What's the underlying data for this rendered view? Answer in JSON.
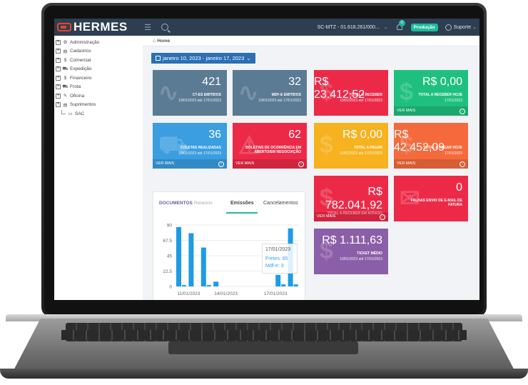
{
  "header": {
    "brand": "HERMES",
    "company": "SC-MTZ - 01.618.261/000...",
    "notifications": "0",
    "environment": "Produção",
    "user": "Suporte"
  },
  "sidebar": {
    "items": [
      {
        "label": "Administração",
        "glyph": "⚙"
      },
      {
        "label": "Cadastros",
        "glyph": "▤"
      },
      {
        "label": "Comercial",
        "glyph": "$"
      },
      {
        "label": "Expedição",
        "glyph": "⛟"
      },
      {
        "label": "Financeiro",
        "glyph": "$"
      },
      {
        "label": "Frota",
        "glyph": "⛟"
      },
      {
        "label": "Oficina",
        "glyph": "✎"
      },
      {
        "label": "Suprimentos",
        "glyph": "▤"
      }
    ],
    "sac": "SAC"
  },
  "breadcrumb": {
    "home": "Home"
  },
  "date_range": "janeiro 10, 2023 - janeiro 17, 2023",
  "tiles": [
    {
      "value": "421",
      "label": "CT-ES EMITIDOS",
      "sub": "10/01/2023 até 17/01/2023",
      "color": "#5b7a93"
    },
    {
      "value": "32",
      "label": "MDF-E EMITIDOS",
      "sub": "10/01/2023 até 17/01/2023",
      "color": "#5b7a93"
    },
    {
      "value": "R$ 23.412,52",
      "label": "TOTAL A RECEBER",
      "sub": "10/01/2023 até 17/01/2023",
      "color": "#ec2a48"
    },
    {
      "value": "R$ 0,00",
      "label": "TOTAL A RECEBER HOJE",
      "sub": "17/01/2023",
      "more": "VER MAIS",
      "color": "#1fc07f"
    },
    {
      "value": "36",
      "label": "COLETAS REALIZADAS",
      "sub": "10/01/2023 até 17/01/2023",
      "more": "VER MAIS",
      "color": "#3a9ee0"
    },
    {
      "value": "62",
      "label": "BOLETINS DE OCORRÊNCIA EM ABERTO/EM NEGOCIAÇÃO",
      "more": "VER MAIS",
      "color": "#ec2a48"
    },
    {
      "value": "R$ 0,00",
      "label": "TOTAL A PAGAR",
      "sub": "10/01/2023 até 17/01/2023",
      "color": "#f6b21f"
    },
    {
      "value": "R$ 42.452,09",
      "label": "TOTAL A PAGAR HOJE",
      "sub": "17/01/2023",
      "more": "VER MAIS",
      "color": "#f46a3c"
    },
    {
      "value_line1": "R$",
      "value_line2": "782.041,92",
      "label": "TOTAL A RECEBER EM ATRASO",
      "more": "VER MAIS",
      "color": "#ec2a48"
    },
    {
      "value": "0",
      "label": "FALHAS ENVIO DE E-MAIL DE FATURA",
      "color": "#ec2a48"
    },
    {
      "value": "R$ 1.111,63",
      "label": "TICKET MÉDIO",
      "sub": "10/01/2023 até 17/01/2023",
      "color": "#8b5fa8"
    }
  ],
  "chart_panel": {
    "title": "DOCUMENTOS",
    "subtitle": "Relatório",
    "tabs": [
      "Emissões",
      "Cancelamentos"
    ],
    "tooltip": {
      "date": "17/01/2023",
      "fretes": "Fretes: 85",
      "mdfe": "Mdf-e: 3"
    }
  },
  "chart_data": {
    "type": "bar",
    "yticks": [
      0,
      22.5,
      45,
      67.5,
      90
    ],
    "ylim": [
      0,
      90
    ],
    "x_ticks": [
      "11/01/2023",
      "14/01/2023",
      "17/01/2023"
    ],
    "bar_color": "#1e9be6",
    "series": [
      {
        "values": [
          87,
          78,
          57,
          7,
          0,
          0,
          0,
          0,
          17,
          85
        ]
      },
      {
        "values": [
          2,
          0,
          2,
          0,
          0,
          0,
          0,
          0,
          3,
          3
        ]
      }
    ]
  }
}
